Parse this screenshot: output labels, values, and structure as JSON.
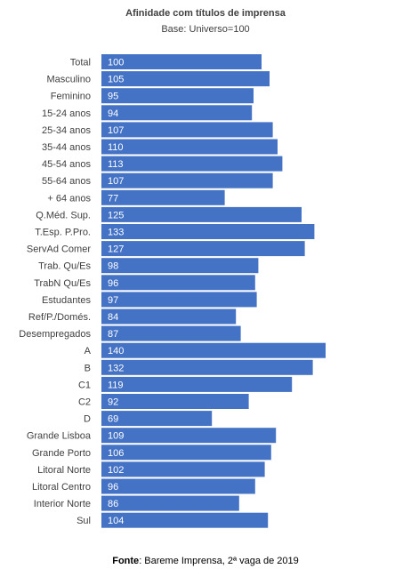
{
  "chart_data": {
    "type": "bar",
    "orientation": "horizontal",
    "title": "Afinidade com títulos de imprensa",
    "subtitle": "Base: Universo=100",
    "bar_color": "#4472C4",
    "data_label_color": "#FFFFFF",
    "categories": [
      "Total",
      "Masculino",
      "Feminino",
      "15-24 anos",
      "25-34 anos",
      "35-44 anos",
      "45-54 anos",
      "55-64 anos",
      "+ 64 anos",
      "Q.Méd. Sup.",
      "T.Esp. P.Pro.",
      "ServAd Comer",
      "Trab. Qu/Es",
      "TrabN Qu/Es",
      "Estudantes",
      "Ref/P./Domés.",
      "Desempregados",
      "A",
      "B",
      "C1",
      "C2",
      "D",
      "Grande Lisboa",
      "Grande Porto",
      "Litoral Norte",
      "Litoral Centro",
      "Interior Norte",
      "Sul"
    ],
    "values": [
      100,
      105,
      95,
      94,
      107,
      110,
      113,
      107,
      77,
      125,
      133,
      127,
      98,
      96,
      97,
      84,
      87,
      140,
      132,
      119,
      92,
      69,
      109,
      106,
      102,
      96,
      86,
      104
    ],
    "grid": false,
    "legend": "none"
  },
  "source": {
    "label": "Fonte",
    "text": ": Bareme Imprensa, 2ª vaga de 2019"
  }
}
